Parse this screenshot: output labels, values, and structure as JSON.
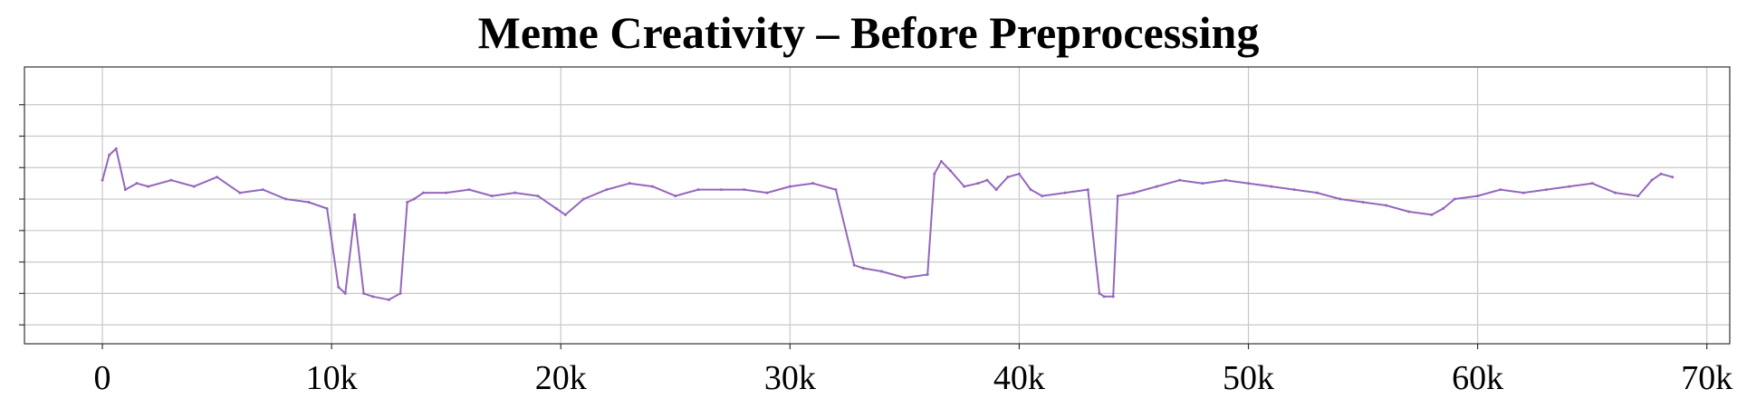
{
  "chart_data": {
    "type": "line",
    "title": "Meme Creativity – Before Preprocessing",
    "xlabel": "",
    "ylabel": "",
    "xlim": [
      -3400,
      71000
    ],
    "ylim": [
      -0.6,
      8.2
    ],
    "x_ticks": [
      0,
      10000,
      20000,
      30000,
      40000,
      50000,
      60000,
      70000
    ],
    "x_tick_labels": [
      "0",
      "10k",
      "20k",
      "30k",
      "40k",
      "50k",
      "60k",
      "70k"
    ],
    "y_ticks": [
      0,
      1,
      2,
      3,
      4,
      5,
      6,
      7
    ],
    "y_tick_labels_visible": false,
    "grid": true,
    "color": "#9467bd",
    "series": [
      {
        "x": [
          0,
          300,
          600,
          1000,
          1500,
          2000,
          3000,
          4000,
          5000,
          6000,
          7000,
          8000,
          9000,
          9800,
          10300,
          10600,
          11000,
          11400,
          11800,
          12500,
          13000,
          13300,
          13600,
          14000,
          15000,
          16000,
          17000,
          18000,
          19000,
          19800,
          20200,
          21000,
          22000,
          23000,
          24000,
          25000,
          26000,
          27000,
          28000,
          29000,
          30000,
          31000,
          32000,
          32800,
          33200,
          34000,
          35000,
          36000,
          36300,
          36600,
          37000,
          37600,
          38200,
          38600,
          39000,
          39500,
          40000,
          40500,
          41000,
          42000,
          43000,
          43500,
          43700,
          44100,
          44300,
          45000,
          46000,
          47000,
          48000,
          49000,
          50000,
          51000,
          52000,
          53000,
          54000,
          55000,
          56000,
          57000,
          58000,
          58500,
          59000,
          60000,
          61000,
          62000,
          63000,
          64000,
          65000,
          66000,
          67000,
          67600,
          68000,
          68500
        ],
        "y": [
          4.6,
          5.4,
          5.6,
          4.3,
          4.5,
          4.4,
          4.6,
          4.4,
          4.7,
          4.2,
          4.3,
          4.0,
          3.9,
          3.7,
          1.2,
          1.0,
          3.5,
          1.0,
          0.9,
          0.8,
          1.0,
          3.9,
          4.0,
          4.2,
          4.2,
          4.3,
          4.1,
          4.2,
          4.1,
          3.7,
          3.5,
          4.0,
          4.3,
          4.5,
          4.4,
          4.1,
          4.3,
          4.3,
          4.3,
          4.2,
          4.4,
          4.5,
          4.3,
          1.9,
          1.8,
          1.7,
          1.5,
          1.6,
          4.8,
          5.2,
          4.9,
          4.4,
          4.5,
          4.6,
          4.3,
          4.7,
          4.8,
          4.3,
          4.1,
          4.2,
          4.3,
          1.0,
          0.9,
          0.9,
          4.1,
          4.2,
          4.4,
          4.6,
          4.5,
          4.6,
          4.5,
          4.4,
          4.3,
          4.2,
          4.0,
          3.9,
          3.8,
          3.6,
          3.5,
          3.7,
          4.0,
          4.1,
          4.3,
          4.2,
          4.3,
          4.4,
          4.5,
          4.2,
          4.1,
          4.6,
          4.8,
          4.7
        ]
      }
    ]
  }
}
